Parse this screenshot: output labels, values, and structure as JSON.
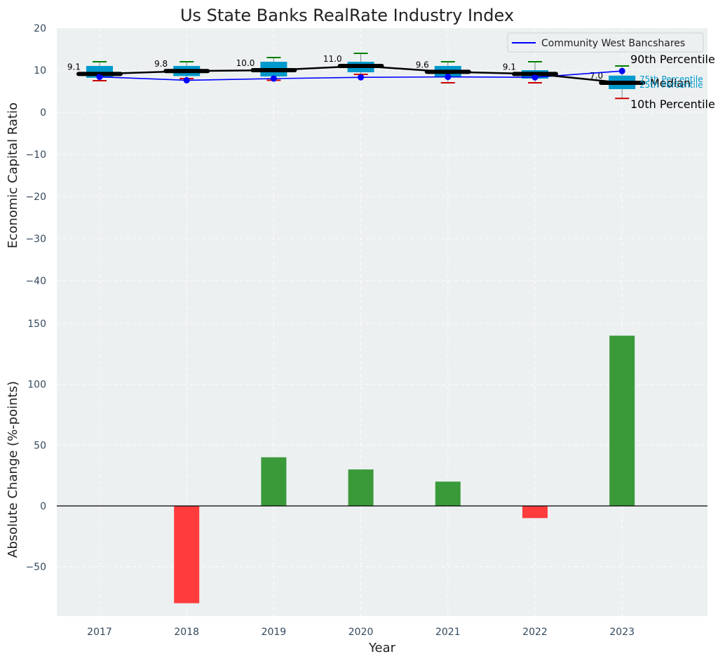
{
  "chart_data": [
    {
      "type": "box",
      "title": "Us State Banks RealRate Industry Index",
      "ylabel": "Economic Capital Ratio",
      "xlabel": "",
      "categories": [
        "2017",
        "2018",
        "2019",
        "2020",
        "2021",
        "2022",
        "2023"
      ],
      "ylim": [
        -50,
        20
      ],
      "yticks": [
        20,
        10,
        0,
        -10,
        -20,
        -30,
        -40
      ],
      "ytick_labels": [
        "20",
        "10",
        "0",
        "−10",
        "−20",
        "−30",
        "−40"
      ],
      "grid": true,
      "legend_position": "top-right",
      "colors": {
        "box": "#0099cc",
        "median": "#000000",
        "series": "#0000ff",
        "p90": "#008000",
        "p10": "#cc0000",
        "background": "#ecf0f1"
      },
      "boxes": [
        {
          "p10": 7.5,
          "q1": 8.2,
          "median": 9.1,
          "q3": 11.0,
          "p90": 12.0
        },
        {
          "p10": 8.0,
          "q1": 8.6,
          "median": 9.8,
          "q3": 11.0,
          "p90": 12.0
        },
        {
          "p10": 7.6,
          "q1": 8.5,
          "median": 10.0,
          "q3": 12.0,
          "p90": 13.0
        },
        {
          "p10": 9.0,
          "q1": 9.5,
          "median": 11.0,
          "q3": 12.0,
          "p90": 14.0
        },
        {
          "p10": 7.0,
          "q1": 8.3,
          "median": 9.6,
          "q3": 11.0,
          "p90": 12.0
        },
        {
          "p10": 7.0,
          "q1": 8.0,
          "median": 9.1,
          "q3": 10.0,
          "p90": 12.0
        },
        {
          "p10": 3.3,
          "q1": 5.5,
          "median": 7.0,
          "q3": 8.7,
          "p90": 11.0
        }
      ],
      "median_labels": [
        "9.1",
        "9.8",
        "10.0",
        "11.0",
        "9.6",
        "9.1",
        "7.0"
      ],
      "series": [
        {
          "name": "Community West Bancshares",
          "values": [
            8.4,
            7.6,
            8.0,
            8.3,
            8.4,
            8.3,
            9.8
          ]
        }
      ],
      "annotations": {
        "p90": "90th Percentile",
        "q3": "75th Percentile",
        "median": "Median",
        "q1": "25th Percentile",
        "p10": "10th Percentile"
      }
    },
    {
      "type": "bar",
      "title": "",
      "ylabel": "Absolute Change (%-points)",
      "xlabel": "Year",
      "categories": [
        "2017",
        "2018",
        "2019",
        "2020",
        "2021",
        "2022",
        "2023"
      ],
      "values": [
        null,
        -80,
        40,
        30,
        20,
        -10,
        140
      ],
      "ylim": [
        -90,
        150
      ],
      "yticks": [
        150,
        100,
        50,
        0,
        -50
      ],
      "ytick_labels": [
        "150",
        "100",
        "50",
        "0",
        "−50"
      ],
      "grid": true,
      "colors": {
        "positive": "#3a9a3a",
        "negative": "#ff3c3c",
        "background": "#ecf0f1"
      }
    }
  ]
}
